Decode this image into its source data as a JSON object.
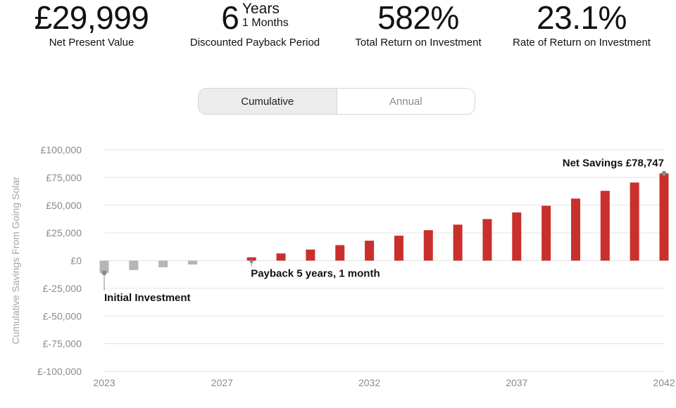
{
  "metrics": {
    "npv": {
      "value": "£29,999",
      "label": "Net Present Value"
    },
    "payback": {
      "years_value": "6",
      "years_unit": "Years",
      "months": "1 Months",
      "label": "Discounted Payback Period"
    },
    "total_return": {
      "value": "582%",
      "label": "Total Return on Investment"
    },
    "rate_return": {
      "value": "23.1%",
      "label": "Rate of Return on Investment"
    }
  },
  "toggle": {
    "options": [
      "Cumulative",
      "Annual"
    ],
    "selected": "Cumulative"
  },
  "colors": {
    "negative": "#b5b5b5",
    "positive": "#c9302c",
    "grid": "#e2e2e2",
    "axis_text": "#8a8a8a"
  },
  "chart_data": {
    "type": "bar",
    "ylabel": "Cumulative Savings From Going Solar",
    "ylim": [
      -100000,
      100000
    ],
    "yticks": [
      100000,
      75000,
      50000,
      25000,
      0,
      -25000,
      -50000,
      -75000,
      -100000
    ],
    "ytick_labels": [
      "£100,000",
      "£75,000",
      "£50,000",
      "£25,000",
      "£0",
      "£-25,000",
      "£-50,000",
      "£-75,000",
      "£-100,000"
    ],
    "xticks": [
      2023,
      2027,
      2032,
      2037,
      2042
    ],
    "xtick_labels": [
      "2023",
      "2027",
      "2032",
      "2037",
      "2042"
    ],
    "grid": true,
    "years": [
      2023,
      2024,
      2025,
      2026,
      2027,
      2028,
      2029,
      2030,
      2031,
      2032,
      2033,
      2034,
      2035,
      2036,
      2037,
      2038,
      2039,
      2040,
      2041,
      2042
    ],
    "values": [
      -11000,
      -8500,
      -6000,
      -3500,
      0,
      3000,
      6500,
      10000,
      14000,
      18000,
      22500,
      27500,
      32500,
      37500,
      43500,
      49500,
      56000,
      63000,
      70500,
      78747
    ],
    "annotations": [
      {
        "text": "Initial Investment",
        "year": 2023,
        "value": -11000
      },
      {
        "text": "Payback 5 years, 1 month",
        "year": 2028,
        "value": 0
      },
      {
        "text": "Net Savings £78,747",
        "year": 2042,
        "value": 78747
      }
    ]
  }
}
